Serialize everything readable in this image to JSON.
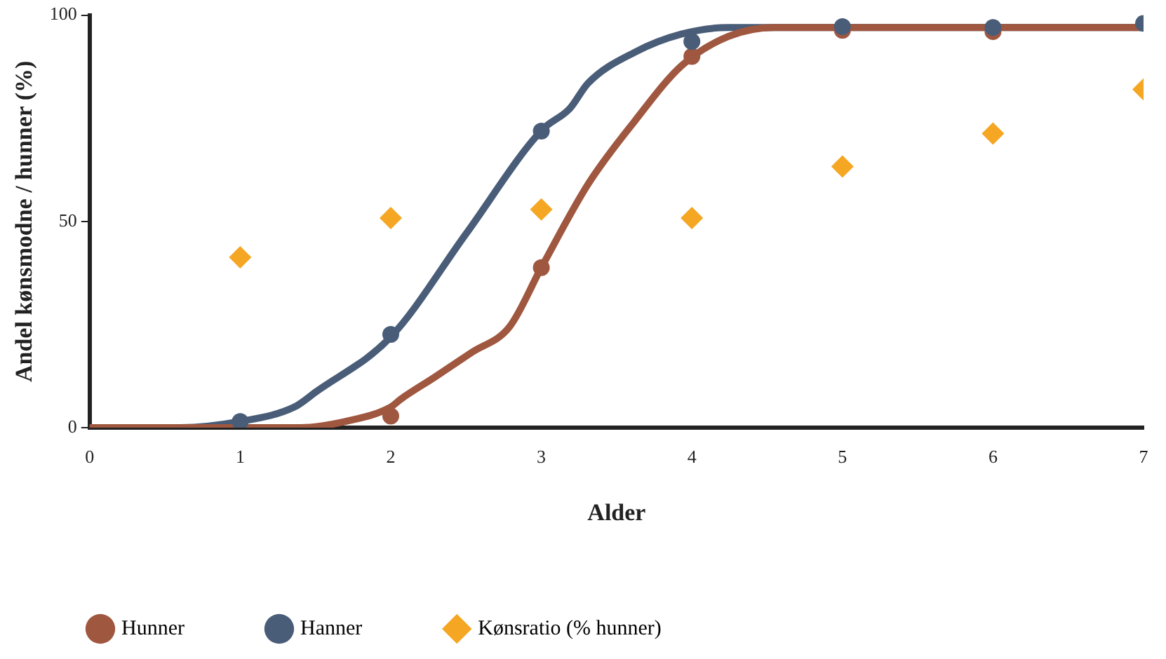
{
  "chart_data": {
    "type": "line",
    "xlabel": "Alder",
    "ylabel": "Andel kønsmodne / hunner (%)",
    "xlim": [
      0,
      7
    ],
    "xticks": [
      0,
      1,
      2,
      3,
      4,
      5,
      6,
      7
    ],
    "ylim": [
      0,
      100
    ],
    "yticks": [
      0,
      50,
      100
    ],
    "grid": false,
    "legend": "bottom",
    "series": [
      {
        "name": "Hunner",
        "color": "#a0573f",
        "marker": "none",
        "line_style": "solid",
        "x": [
          0,
          1,
          1.4,
          1.7,
          2,
          2.07,
          2.29,
          2.54,
          2.79,
          3,
          3.31,
          3.62,
          3.93,
          4.24,
          4.55,
          5,
          6,
          7
        ],
        "values": [
          0,
          0,
          0,
          1.5,
          5,
          7,
          12.2,
          18.3,
          24.5,
          38.8,
          59,
          74.3,
          87.7,
          94.8,
          97,
          97,
          97,
          97
        ]
      },
      {
        "name": "Hanner",
        "color": "#4a5d78",
        "marker": "none",
        "line_style": "solid",
        "x": [
          0,
          0.6,
          1,
          1.36,
          1.5,
          2,
          2.5,
          3,
          3.19,
          3.31,
          3.62,
          3.93,
          4.24,
          5,
          6,
          7
        ],
        "values": [
          0,
          0,
          1.5,
          5,
          8.6,
          22,
          47,
          72,
          77.4,
          83.5,
          91,
          95.4,
          97,
          97,
          97,
          97
        ]
      },
      {
        "type": "scatter",
        "color": "#a0573f",
        "marker": "circle",
        "x": [
          2,
          3,
          4,
          5,
          6
        ],
        "values": [
          2.8,
          38.8,
          90,
          96.3,
          96
        ]
      },
      {
        "type": "scatter",
        "color": "#4a5d78",
        "marker": "circle",
        "x": [
          1,
          2,
          3,
          4,
          5,
          6,
          7
        ],
        "values": [
          1.5,
          22.6,
          71.9,
          93.6,
          97.2,
          97,
          98
        ]
      },
      {
        "name": "Kønsratio (% hunner)",
        "type": "scatter",
        "color": "#f5a623",
        "marker": "diamond",
        "x": [
          1,
          2,
          3,
          4,
          5,
          6,
          7
        ],
        "values": [
          41.3,
          50.8,
          52.9,
          50.8,
          63.3,
          71.3,
          82
        ]
      }
    ]
  }
}
